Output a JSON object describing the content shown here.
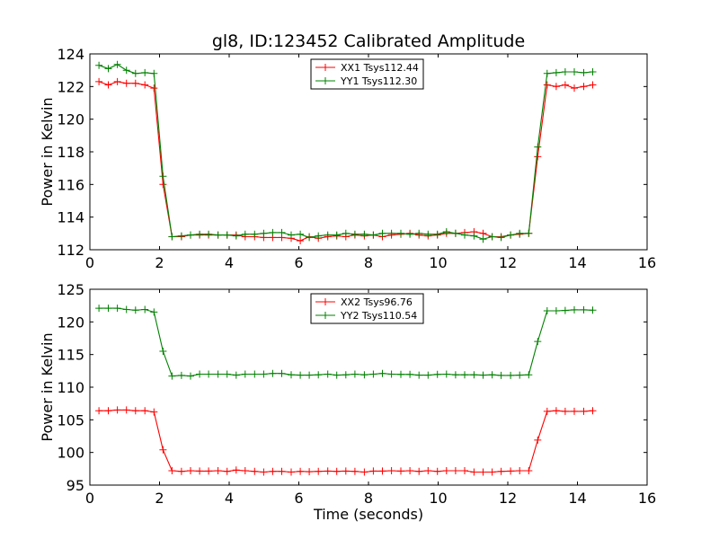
{
  "chart_data": [
    {
      "type": "line",
      "title": "gl8, ID:123452 Calibrated Amplitude",
      "xlabel": "",
      "ylabel": "Power in Kelvin",
      "xlim": [
        0,
        16
      ],
      "ylim": [
        112,
        124
      ],
      "xticks": [
        "0",
        "2",
        "4",
        "6",
        "8",
        "10",
        "12",
        "14",
        "16"
      ],
      "yticks": [
        "112",
        "114",
        "116",
        "118",
        "120",
        "122",
        "124"
      ],
      "legend": "top-center",
      "grid": false,
      "x": [
        0.26,
        0.53,
        0.79,
        1.05,
        1.31,
        1.58,
        1.84,
        2.1,
        2.36,
        2.63,
        2.89,
        3.15,
        3.41,
        3.68,
        3.94,
        4.2,
        4.46,
        4.73,
        4.99,
        5.25,
        5.51,
        5.78,
        6.04,
        6.3,
        6.56,
        6.83,
        7.09,
        7.35,
        7.61,
        7.88,
        8.14,
        8.4,
        8.66,
        8.93,
        9.19,
        9.45,
        9.71,
        9.98,
        10.24,
        10.5,
        10.76,
        11.03,
        11.29,
        11.55,
        11.81,
        12.08,
        12.34,
        12.6,
        12.86,
        13.13,
        13.39,
        13.65,
        13.91,
        14.18,
        14.44
      ],
      "series": [
        {
          "name": "XX1 Tsys112.44",
          "color": "#ff0000",
          "values": [
            122.3,
            122.1,
            122.3,
            122.2,
            122.2,
            122.1,
            121.9,
            116.0,
            112.8,
            112.8,
            112.9,
            112.9,
            112.9,
            112.9,
            112.9,
            112.9,
            112.8,
            112.8,
            112.75,
            112.75,
            112.75,
            112.7,
            112.55,
            112.8,
            112.7,
            112.8,
            112.85,
            112.8,
            112.9,
            112.85,
            112.9,
            112.8,
            112.9,
            112.95,
            113.0,
            112.9,
            112.85,
            112.9,
            113.0,
            113.0,
            113.05,
            113.1,
            113.0,
            112.8,
            112.8,
            112.9,
            112.95,
            113.0,
            117.7,
            122.1,
            122.0,
            122.1,
            121.9,
            122.0,
            122.1
          ]
        },
        {
          "name": "YY1 Tsys112.30",
          "color": "#008000",
          "values": [
            123.3,
            123.1,
            123.35,
            123.0,
            122.8,
            122.85,
            122.8,
            116.5,
            112.8,
            112.85,
            112.9,
            112.95,
            112.95,
            112.9,
            112.9,
            112.85,
            112.95,
            112.95,
            113.0,
            113.05,
            113.05,
            112.9,
            112.95,
            112.75,
            112.85,
            112.9,
            112.9,
            113.0,
            112.95,
            112.95,
            112.9,
            113.0,
            113.0,
            113.0,
            112.95,
            113.0,
            112.95,
            112.95,
            113.1,
            113.0,
            112.9,
            112.85,
            112.65,
            112.8,
            112.75,
            112.9,
            113.0,
            113.0,
            118.3,
            122.8,
            122.85,
            122.9,
            122.9,
            122.85,
            122.9
          ]
        }
      ]
    },
    {
      "type": "line",
      "title": "",
      "xlabel": "Time (seconds)",
      "ylabel": "Power in Kelvin",
      "xlim": [
        0,
        16
      ],
      "ylim": [
        95,
        125
      ],
      "xticks": [
        "0",
        "2",
        "4",
        "6",
        "8",
        "10",
        "12",
        "14",
        "16"
      ],
      "yticks": [
        "95",
        "100",
        "105",
        "110",
        "115",
        "120",
        "125"
      ],
      "legend": "top-center",
      "grid": false,
      "x": [
        0.26,
        0.53,
        0.79,
        1.05,
        1.31,
        1.58,
        1.84,
        2.1,
        2.36,
        2.63,
        2.89,
        3.15,
        3.41,
        3.68,
        3.94,
        4.2,
        4.46,
        4.73,
        4.99,
        5.25,
        5.51,
        5.78,
        6.04,
        6.3,
        6.56,
        6.83,
        7.09,
        7.35,
        7.61,
        7.88,
        8.14,
        8.4,
        8.66,
        8.93,
        9.19,
        9.45,
        9.71,
        9.98,
        10.24,
        10.5,
        10.76,
        11.03,
        11.29,
        11.55,
        11.81,
        12.08,
        12.34,
        12.6,
        12.86,
        13.13,
        13.39,
        13.65,
        13.91,
        14.18,
        14.44
      ],
      "series": [
        {
          "name": "XX2 Tsys96.76",
          "color": "#ff0000",
          "values": [
            106.4,
            106.4,
            106.5,
            106.5,
            106.4,
            106.4,
            106.2,
            100.4,
            97.2,
            97.1,
            97.2,
            97.15,
            97.15,
            97.2,
            97.1,
            97.3,
            97.2,
            97.1,
            97.0,
            97.1,
            97.1,
            97.0,
            97.1,
            97.05,
            97.1,
            97.15,
            97.1,
            97.15,
            97.1,
            97.0,
            97.15,
            97.15,
            97.2,
            97.15,
            97.2,
            97.1,
            97.2,
            97.1,
            97.2,
            97.2,
            97.2,
            97.0,
            97.0,
            97.0,
            97.1,
            97.15,
            97.2,
            97.2,
            101.9,
            106.3,
            106.4,
            106.3,
            106.3,
            106.3,
            106.4
          ]
        },
        {
          "name": "YY2 Tsys110.54",
          "color": "#008000",
          "values": [
            122.1,
            122.1,
            122.1,
            121.9,
            121.8,
            121.9,
            121.5,
            115.5,
            111.7,
            111.8,
            111.7,
            112.0,
            112.0,
            112.0,
            112.0,
            111.85,
            112.0,
            112.0,
            112.0,
            112.1,
            112.1,
            111.9,
            111.85,
            111.85,
            111.9,
            112.0,
            111.85,
            111.9,
            112.0,
            111.9,
            112.0,
            112.1,
            112.0,
            111.95,
            111.95,
            111.85,
            111.85,
            111.95,
            112.0,
            111.9,
            111.9,
            111.9,
            111.85,
            111.9,
            111.8,
            111.8,
            111.85,
            111.9,
            117.0,
            121.7,
            121.7,
            121.75,
            121.85,
            121.85,
            121.8
          ]
        }
      ]
    }
  ]
}
